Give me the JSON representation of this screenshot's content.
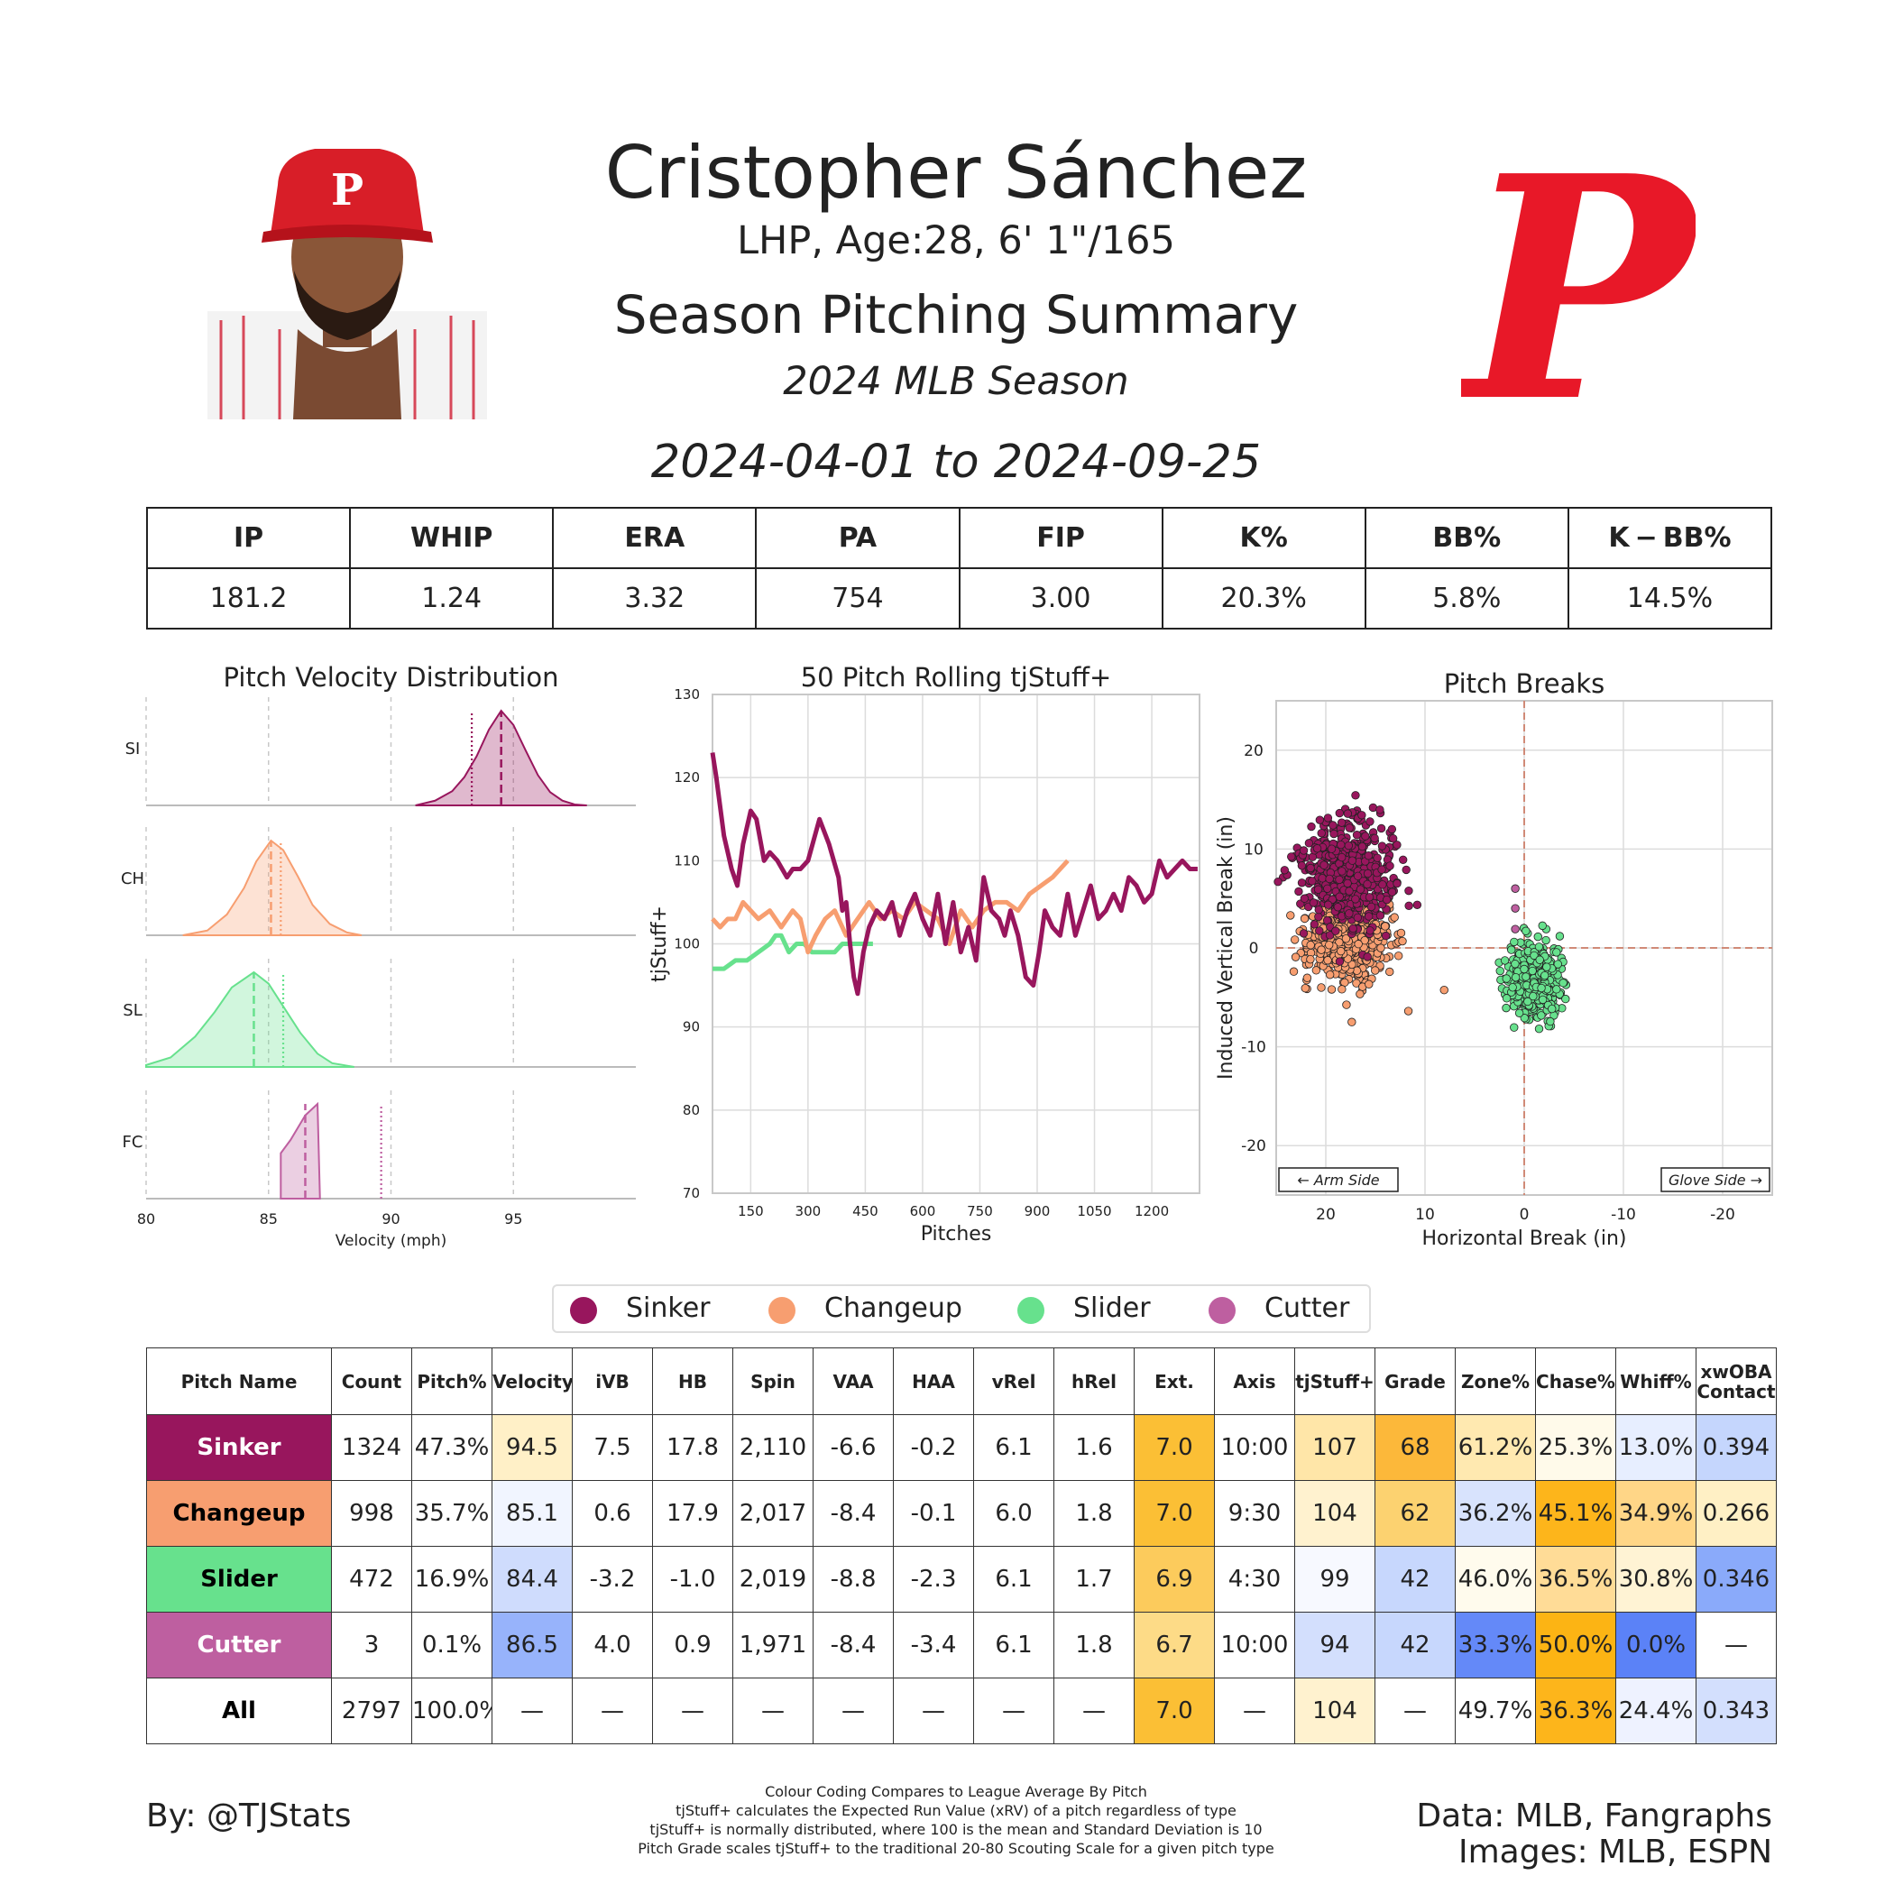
{
  "header": {
    "player_name": "Cristopher Sánchez",
    "bio": "LHP, Age:28, 6' 1\"/165",
    "title": "Season Pitching Summary",
    "season": "2024 MLB Season",
    "date_range": "2024-04-01 to 2024-09-25",
    "team_logo_letter": "P",
    "cap_logo_letter": "P"
  },
  "season_stats": {
    "headers": [
      "IP",
      "WHIP",
      "ERA",
      "PA",
      "FIP",
      "K%",
      "BB%",
      "K − BB%"
    ],
    "values": [
      "181.2",
      "1.24",
      "3.32",
      "754",
      "3.00",
      "20.3%",
      "5.8%",
      "14.5%"
    ]
  },
  "colors": {
    "Sinker": "#98165d",
    "Changeup": "#f79e70",
    "Slider": "#67e18d",
    "Cutter": "#be5fa0",
    "phillies_red": "#e81828"
  },
  "legend": [
    "Sinker",
    "Changeup",
    "Slider",
    "Cutter"
  ],
  "chart_data": [
    {
      "type": "area",
      "title": "Pitch Velocity Distribution",
      "xlabel": "Velocity (mph)",
      "ylabel": "",
      "xlim": [
        80,
        100
      ],
      "xticks": [
        80,
        85,
        90,
        95
      ],
      "rows": [
        {
          "label": "SI",
          "pitch": "Sinker",
          "x": [
            91,
            91.8,
            92.5,
            93,
            93.5,
            94,
            94.5,
            95,
            95.5,
            96,
            96.5,
            97,
            97.5,
            98
          ],
          "y": [
            0,
            0.05,
            0.15,
            0.3,
            0.52,
            0.8,
            1.0,
            0.85,
            0.58,
            0.32,
            0.14,
            0.05,
            0.01,
            0
          ],
          "mean": 94.5,
          "league_avg": 93.3
        },
        {
          "label": "CH",
          "pitch": "Changeup",
          "x": [
            81.5,
            82.5,
            83.3,
            84,
            84.5,
            85.1,
            85.6,
            86.2,
            86.8,
            87.5,
            88.2,
            88.8
          ],
          "y": [
            0,
            0.05,
            0.22,
            0.5,
            0.78,
            1.0,
            0.9,
            0.62,
            0.32,
            0.12,
            0.03,
            0
          ],
          "mean": 85.1,
          "league_avg": 85.5
        },
        {
          "label": "SL",
          "pitch": "Slider",
          "x": [
            80,
            81,
            82,
            82.8,
            83.5,
            84.4,
            85,
            85.6,
            86.3,
            87,
            87.6,
            88.5
          ],
          "y": [
            0.02,
            0.1,
            0.32,
            0.58,
            0.84,
            1.0,
            0.88,
            0.64,
            0.36,
            0.14,
            0.04,
            0
          ],
          "mean": 84.4,
          "league_avg": 85.6
        },
        {
          "label": "FC",
          "pitch": "Cutter",
          "x": [
            85.5,
            85.9,
            86.5,
            87.0,
            87.1
          ],
          "y": [
            0.48,
            0.62,
            0.88,
            1.0,
            0
          ],
          "mean": 86.5,
          "league_avg": 89.6
        }
      ]
    },
    {
      "type": "line",
      "title": "50 Pitch Rolling tjStuff+",
      "xlabel": "Pitches",
      "ylabel": "tjStuff+",
      "xlim": [
        50,
        1325
      ],
      "ylim": [
        70,
        130
      ],
      "xticks": [
        150,
        300,
        450,
        600,
        750,
        900,
        1050,
        1200
      ],
      "yticks": [
        70,
        80,
        90,
        100,
        110,
        120,
        130
      ],
      "series": [
        {
          "name": "Sinker",
          "x": [
            50,
            60,
            80,
            100,
            115,
            130,
            150,
            165,
            185,
            200,
            220,
            245,
            260,
            280,
            300,
            330,
            355,
            380,
            390,
            400,
            410,
            420,
            430,
            445,
            460,
            480,
            500,
            520,
            540,
            560,
            580,
            600,
            620,
            640,
            660,
            680,
            700,
            720,
            740,
            760,
            780,
            800,
            815,
            830,
            850,
            870,
            890,
            905,
            920,
            940,
            960,
            980,
            1000,
            1020,
            1040,
            1060,
            1080,
            1100,
            1120,
            1140,
            1160,
            1180,
            1200,
            1220,
            1240,
            1260,
            1280,
            1300,
            1320
          ],
          "y": [
            123,
            120,
            113,
            109,
            107,
            112,
            116,
            115,
            110,
            111,
            110,
            108,
            109,
            109,
            110,
            115,
            112,
            108,
            104,
            105,
            100,
            96,
            94,
            99,
            102,
            104,
            103,
            105,
            101,
            104,
            106,
            103,
            101,
            106,
            100,
            105,
            99,
            102,
            98,
            108,
            104,
            103,
            101,
            104,
            101,
            96,
            95,
            99,
            104,
            102,
            101,
            106,
            101,
            104,
            107,
            103,
            104,
            106,
            104,
            108,
            107,
            105,
            106,
            110,
            108,
            109,
            110,
            109,
            109
          ]
        },
        {
          "name": "Changeup",
          "x": [
            50,
            70,
            90,
            110,
            130,
            150,
            170,
            200,
            230,
            260,
            280,
            300,
            320,
            345,
            370,
            400,
            430,
            460,
            490,
            520,
            550,
            580,
            610,
            640,
            670,
            700,
            730,
            760,
            790,
            820,
            850,
            880,
            910,
            940,
            960,
            980
          ],
          "y": [
            103,
            102,
            103,
            103,
            105,
            104,
            103,
            104,
            102,
            104,
            103,
            99,
            101,
            103,
            104,
            101,
            103,
            105,
            103,
            104,
            103,
            105,
            104,
            103,
            100,
            104,
            102,
            104,
            105,
            105,
            104,
            106,
            107,
            108,
            109,
            110
          ]
        },
        {
          "name": "Slider",
          "x": [
            50,
            80,
            110,
            140,
            170,
            200,
            215,
            230,
            250,
            270,
            290,
            310,
            330,
            350,
            370,
            390,
            410,
            430,
            450,
            470
          ],
          "y": [
            97,
            97,
            98,
            98,
            99,
            100,
            101,
            101,
            99,
            100,
            100,
            99,
            99,
            99,
            99,
            100,
            100,
            100,
            100,
            100
          ]
        }
      ]
    },
    {
      "type": "scatter",
      "title": "Pitch Breaks",
      "xlabel": "Horizontal Break (in)",
      "ylabel": "Induced Vertical Break (in)",
      "xlim": [
        25,
        -25
      ],
      "ylim": [
        -25,
        25
      ],
      "xticks": [
        20,
        10,
        0,
        -10,
        -20
      ],
      "yticks": [
        20,
        10,
        0,
        -10,
        -20
      ],
      "annotations": [
        "← Arm Side",
        "Glove Side →"
      ],
      "clusters": [
        {
          "name": "Sinker",
          "count": 1324,
          "center": [
            17.8,
            7.5
          ],
          "spread": [
            2.4,
            2.8
          ]
        },
        {
          "name": "Changeup",
          "count": 998,
          "center": [
            17.9,
            0.6
          ],
          "spread": [
            2.3,
            2.0
          ]
        },
        {
          "name": "Slider",
          "count": 472,
          "center": [
            -1.0,
            -3.2
          ],
          "spread": [
            1.3,
            1.8
          ]
        },
        {
          "name": "Cutter",
          "count": 3,
          "points": [
            [
              0.9,
              6.0
            ],
            [
              0.9,
              4.0
            ],
            [
              0.9,
              1.9
            ]
          ]
        }
      ]
    }
  ],
  "pitch_table": {
    "headers": [
      "Pitch Name",
      "Count",
      "Pitch%",
      "Velocity",
      "iVB",
      "HB",
      "Spin",
      "VAA",
      "HAA",
      "vRel",
      "hRel",
      "Ext.",
      "Axis",
      "tjStuff+",
      "Grade",
      "Zone%",
      "Chase%",
      "Whiff%",
      "xwOBA Contact"
    ],
    "rows": [
      {
        "name": "Sinker",
        "name_color": "#98165d",
        "name_text": "#ffffff",
        "cells": [
          "1324",
          "47.3%",
          "94.5",
          "7.5",
          "17.8",
          "2,110",
          "-6.6",
          "-0.2",
          "6.1",
          "1.6",
          "7.0",
          "10:00",
          "107",
          "68",
          "61.2%",
          "25.3%",
          "13.0%",
          "0.394"
        ],
        "fills": [
          "#ffffff",
          "#ffffff",
          "#fff0c7",
          "#ffffff",
          "#ffffff",
          "#ffffff",
          "#ffffff",
          "#ffffff",
          "#ffffff",
          "#ffffff",
          "#fbbf35",
          "#ffffff",
          "#ffe6a8",
          "#fcb83a",
          "#ffe9b0",
          "#fffaea",
          "#e7eeff",
          "#c5d6fd"
        ]
      },
      {
        "name": "Changeup",
        "name_color": "#f79e70",
        "name_text": "#000000",
        "cells": [
          "998",
          "35.7%",
          "85.1",
          "0.6",
          "17.9",
          "2,017",
          "-8.4",
          "-0.1",
          "6.0",
          "1.8",
          "7.0",
          "9:30",
          "104",
          "62",
          "36.2%",
          "45.1%",
          "34.9%",
          "0.266"
        ],
        "fills": [
          "#ffffff",
          "#ffffff",
          "#f1f5ff",
          "#ffffff",
          "#ffffff",
          "#ffffff",
          "#ffffff",
          "#ffffff",
          "#ffffff",
          "#ffffff",
          "#fbbf35",
          "#ffffff",
          "#fff2cf",
          "#fcd270",
          "#d8e3fd",
          "#fdb51b",
          "#ffd687",
          "#fff0c5"
        ]
      },
      {
        "name": "Slider",
        "name_color": "#67e18d",
        "name_text": "#000000",
        "cells": [
          "472",
          "16.9%",
          "84.4",
          "-3.2",
          "-1.0",
          "2,019",
          "-8.8",
          "-2.3",
          "6.1",
          "1.7",
          "6.9",
          "4:30",
          "99",
          "42",
          "46.0%",
          "36.5%",
          "30.8%",
          "0.346"
        ],
        "fills": [
          "#ffffff",
          "#ffffff",
          "#cfdcfd",
          "#ffffff",
          "#ffffff",
          "#ffffff",
          "#ffffff",
          "#ffffff",
          "#ffffff",
          "#ffffff",
          "#fccb5c",
          "#ffffff",
          "#f7f9ff",
          "#c7d7fd",
          "#fffbed",
          "#ffdc97",
          "#fff3d4",
          "#8aaafa"
        ]
      },
      {
        "name": "Cutter",
        "name_color": "#be5fa0",
        "name_text": "#ffffff",
        "cells": [
          "3",
          "0.1%",
          "86.5",
          "4.0",
          "0.9",
          "1,971",
          "-8.4",
          "-3.4",
          "6.1",
          "1.8",
          "6.7",
          "10:00",
          "94",
          "42",
          "33.3%",
          "50.0%",
          "0.0%",
          "—"
        ],
        "fills": [
          "#ffffff",
          "#ffffff",
          "#97b3fb",
          "#ffffff",
          "#ffffff",
          "#ffffff",
          "#ffffff",
          "#ffffff",
          "#ffffff",
          "#ffffff",
          "#fddb87",
          "#ffffff",
          "#d3dffd",
          "#c7d7fd",
          "#6489f8",
          "#fcb414",
          "#5b82f7",
          "#ffffff"
        ]
      },
      {
        "name": "All",
        "name_color": "#ffffff",
        "name_text": "#000000",
        "cells": [
          "2797",
          "100.0%",
          "—",
          "—",
          "—",
          "—",
          "—",
          "—",
          "—",
          "—",
          "7.0",
          "—",
          "104",
          "—",
          "49.7%",
          "36.3%",
          "24.4%",
          "0.343"
        ],
        "fills": [
          "#ffffff",
          "#ffffff",
          "#ffffff",
          "#ffffff",
          "#ffffff",
          "#ffffff",
          "#ffffff",
          "#ffffff",
          "#ffffff",
          "#ffffff",
          "#fbbf35",
          "#ffffff",
          "#fff2cf",
          "#ffffff",
          "#ffffff",
          "#fdb51b",
          "#eef2ff",
          "#d3dffd"
        ]
      }
    ]
  },
  "footer": {
    "author": "By: @TJStats",
    "notes": [
      "Colour Coding Compares to League Average By Pitch",
      "tjStuff+ calculates the Expected Run Value (xRV) of a pitch regardless of type",
      "tjStuff+ is normally distributed, where 100 is the mean and Standard Deviation is 10",
      "Pitch Grade scales tjStuff+ to the traditional 20-80 Scouting Scale for a given pitch type"
    ],
    "data_source": "Data: MLB, Fangraphs",
    "images_source": "Images: MLB, ESPN"
  }
}
